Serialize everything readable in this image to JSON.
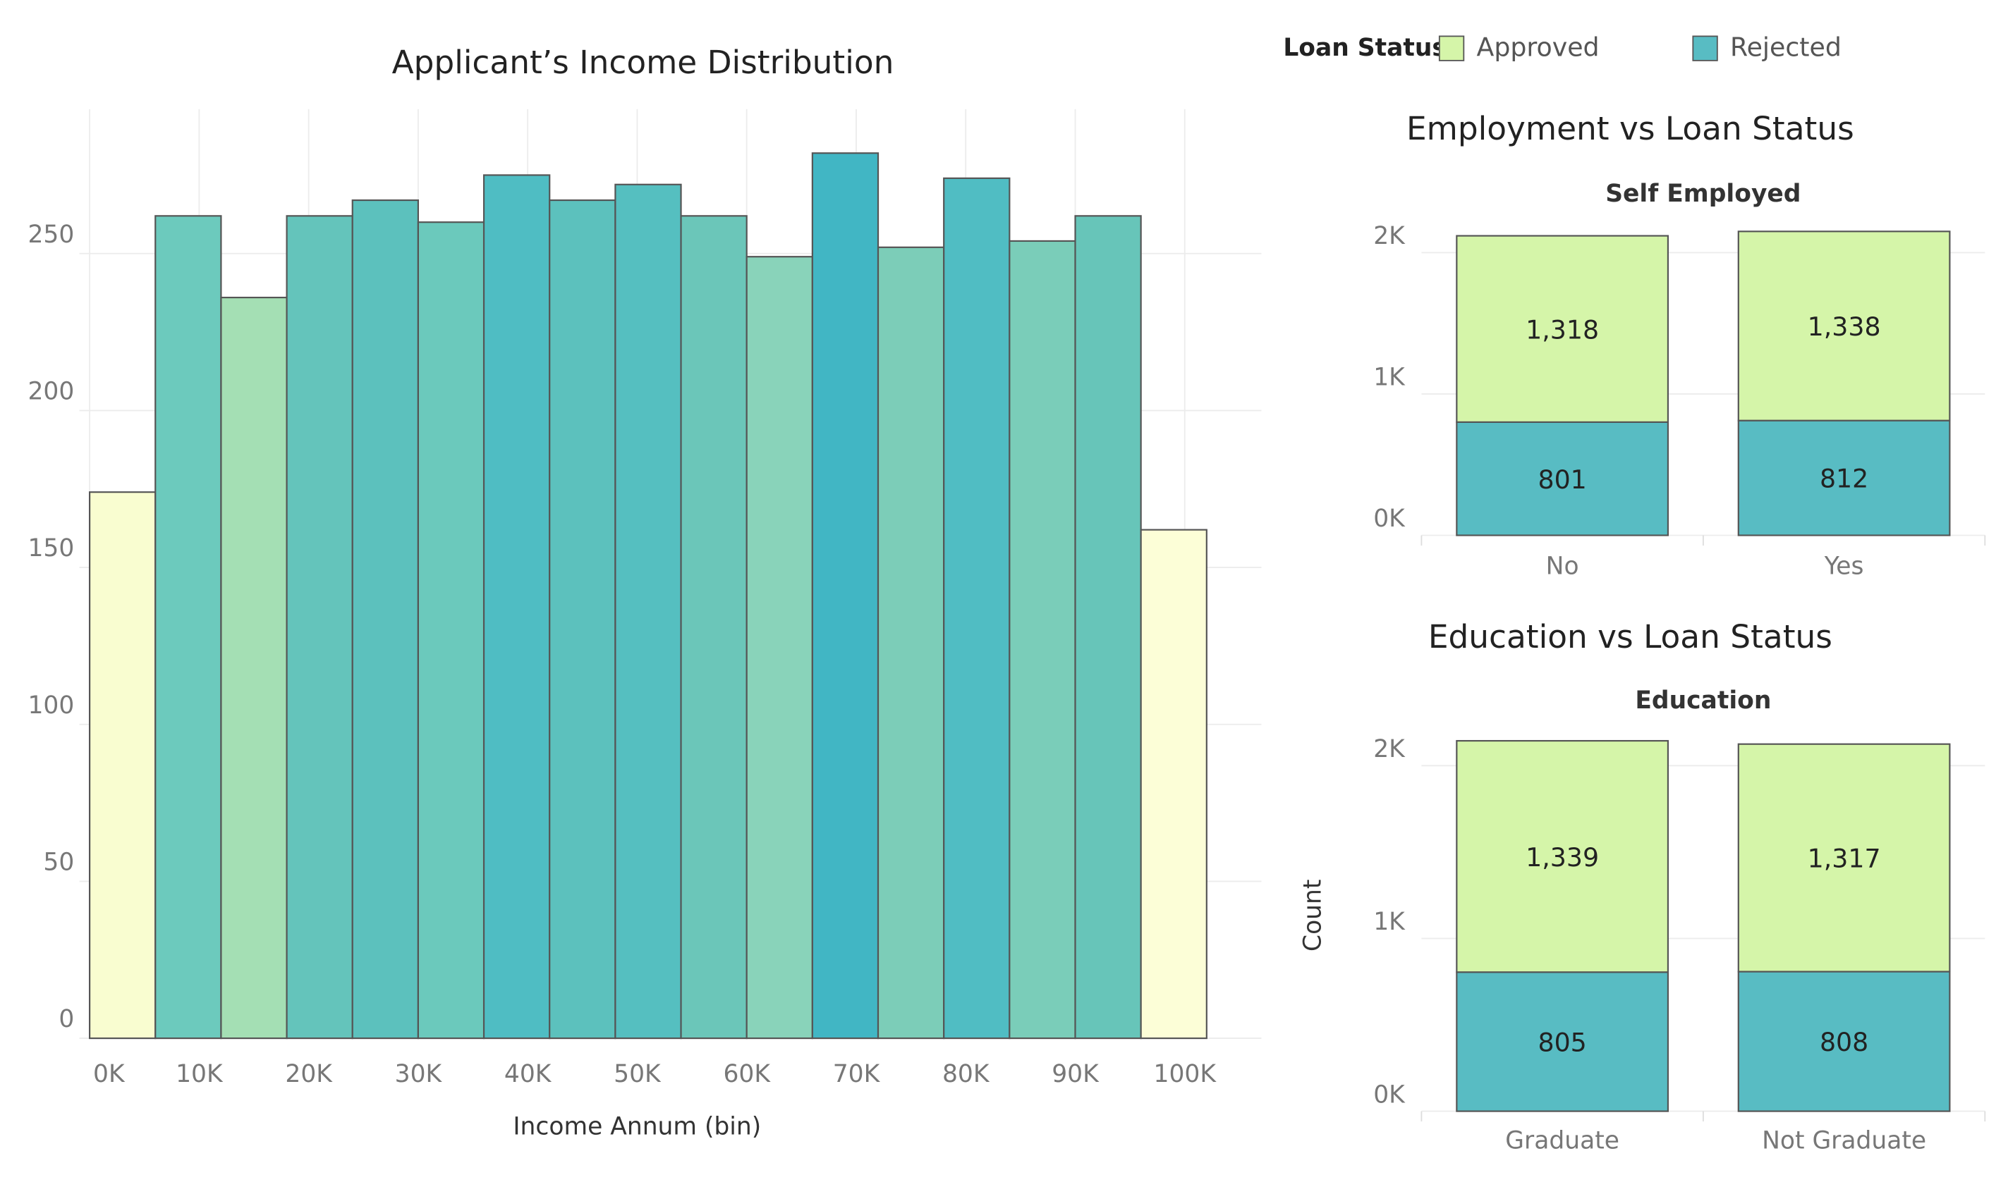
{
  "chart_data": [
    {
      "type": "histogram",
      "title": "Applicant’s Income Distribution",
      "x_label": "Income Annum (bin)",
      "bins": [
        0,
        6,
        12,
        18,
        24,
        30,
        36,
        42,
        48,
        54,
        60,
        66,
        72,
        78,
        84,
        90,
        96,
        102
      ],
      "values": [
        174,
        262,
        236,
        262,
        267,
        260,
        275,
        267,
        272,
        262,
        249,
        282,
        252,
        274,
        254,
        262,
        162
      ],
      "colors": [
        "#f9fdd0",
        "#6ccabd",
        "#a4dfb4",
        "#64c4bb",
        "#5cc1bd",
        "#6bc9bc",
        "#4fbdc3",
        "#5cc1bd",
        "#55bfc0",
        "#6bc6b9",
        "#89d3ba",
        "#41b6c4",
        "#7ccdb8",
        "#50bdc3",
        "#7acdb9",
        "#67c5b9",
        "#fcfed7"
      ],
      "xlim": [
        0,
        107
      ],
      "ylim": [
        0,
        296
      ],
      "xticks": [
        {
          "value": 0,
          "label": "0K"
        },
        {
          "value": 10,
          "label": "10K"
        },
        {
          "value": 20,
          "label": "20K"
        },
        {
          "value": 30,
          "label": "30K"
        },
        {
          "value": 40,
          "label": "40K"
        },
        {
          "value": 50,
          "label": "50K"
        },
        {
          "value": 60,
          "label": "60K"
        },
        {
          "value": 70,
          "label": "70K"
        },
        {
          "value": 80,
          "label": "80K"
        },
        {
          "value": 90,
          "label": "90K"
        },
        {
          "value": 100,
          "label": "100K"
        }
      ],
      "yticks": [
        0,
        50,
        100,
        150,
        200,
        250
      ],
      "grid": true
    },
    {
      "type": "stacked_bar",
      "title": "Employment vs Loan Status",
      "subtitle": "Self Employed",
      "legend_title": "Loan Status",
      "categories": [
        "No",
        "Yes"
      ],
      "series": [
        {
          "name": "Approved",
          "color": "#d5f5a9",
          "values": [
            1318,
            1338
          ],
          "value_labels": [
            "1,318",
            "1,338"
          ]
        },
        {
          "name": "Rejected",
          "color": "#58bcc3",
          "values": [
            801,
            812
          ]
        }
      ],
      "ylim": [
        0,
        2200
      ],
      "yticks": [
        {
          "value": 0,
          "label": "0K"
        },
        {
          "value": 1000,
          "label": "1K"
        },
        {
          "value": 2000,
          "label": "2K"
        }
      ],
      "grid": true
    },
    {
      "type": "stacked_bar",
      "title": "Education vs Loan Status",
      "subtitle": "Education",
      "y_label": "Count",
      "categories": [
        "Graduate",
        "Not Graduate"
      ],
      "series": [
        {
          "color": "#d5f5a9",
          "values": [
            1339,
            1317
          ],
          "value_labels": [
            "1,339",
            "1,317"
          ]
        },
        {
          "color": "#58bcc3",
          "values": [
            805,
            808
          ]
        }
      ],
      "ylim": [
        0,
        2200
      ],
      "yticks": [
        {
          "value": 0,
          "label": "0K"
        },
        {
          "value": 1000,
          "label": "1K"
        },
        {
          "value": 2000,
          "label": "2K"
        }
      ],
      "grid": true
    }
  ]
}
